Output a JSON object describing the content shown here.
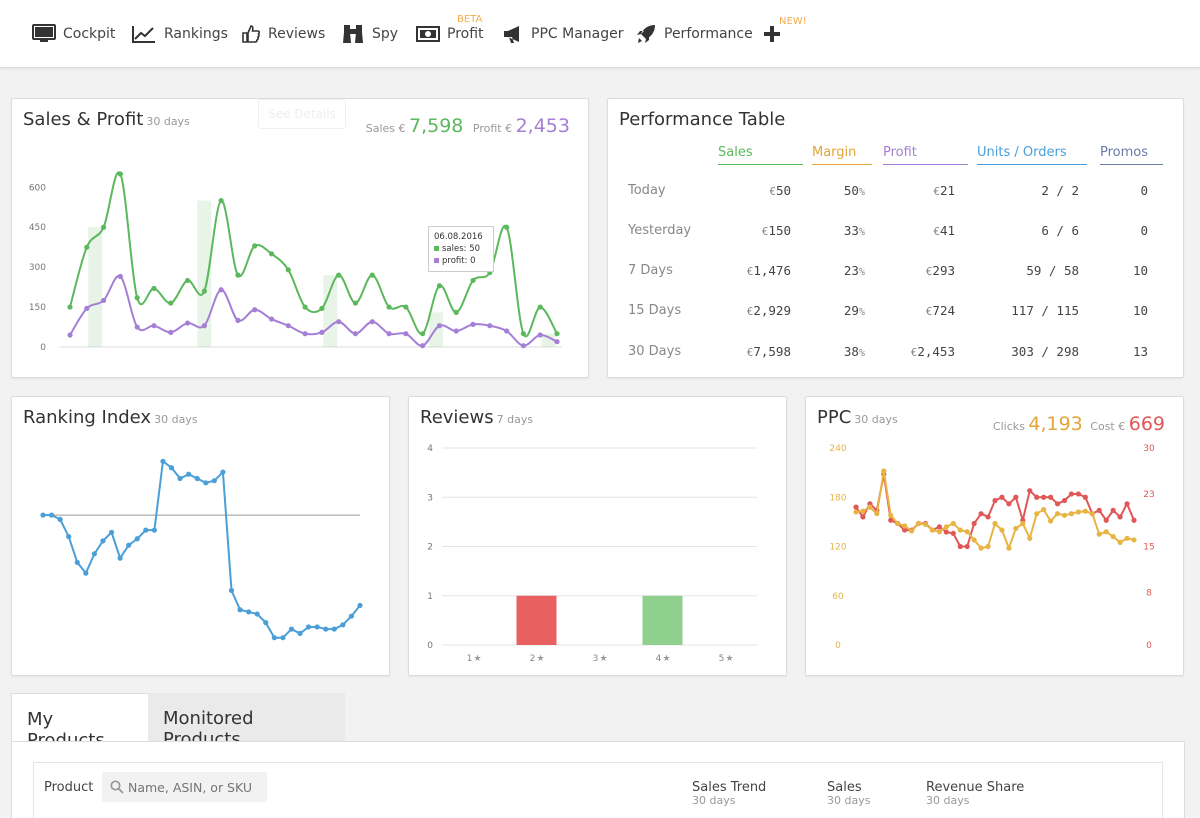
{
  "nav": {
    "items": [
      {
        "label": "Cockpit",
        "icon": "monitor-icon"
      },
      {
        "label": "Rankings",
        "icon": "trend-chart-icon"
      },
      {
        "label": "Reviews",
        "icon": "thumbs-up-icon"
      },
      {
        "label": "Spy",
        "icon": "binoculars-icon"
      },
      {
        "label": "Profit",
        "icon": "banknote-icon",
        "badge": "BETA"
      },
      {
        "label": "PPC Manager",
        "icon": "megaphone-icon"
      },
      {
        "label": "Performance",
        "icon": "rocket-icon"
      }
    ],
    "plus_badge": "NEW!"
  },
  "sales_profit": {
    "title": "Sales & Profit",
    "period": "30 days",
    "ghost_button": "See Details",
    "sales_label": "Sales €",
    "sales_value": "7,598",
    "profit_label": "Profit €",
    "profit_value": "2,453",
    "tooltip": {
      "date": "06.08.2016",
      "sales_label": "sales:",
      "sales_value": "50",
      "profit_label": "profit:",
      "profit_value": "0"
    },
    "colors": {
      "sales": "#5cb85c",
      "profit": "#a57fd6"
    }
  },
  "performance_table": {
    "title": "Performance Table",
    "columns": [
      "Sales",
      "Margin",
      "Profit",
      "Units / Orders",
      "Promos"
    ],
    "column_colors": [
      "#5cb85c",
      "#e2a53a",
      "#a57fd6",
      "#4a9fd8",
      "#6b7ba8"
    ],
    "rows": [
      {
        "label": "Today",
        "sales": "50",
        "margin": "50",
        "profit": "21",
        "units": "2 / 2",
        "promos": "0"
      },
      {
        "label": "Yesterday",
        "sales": "150",
        "margin": "33",
        "profit": "41",
        "units": "6 / 6",
        "promos": "0"
      },
      {
        "label": "7 Days",
        "sales": "1,476",
        "margin": "23",
        "profit": "293",
        "units": "59 / 58",
        "promos": "10"
      },
      {
        "label": "15 Days",
        "sales": "2,929",
        "margin": "29",
        "profit": "724",
        "units": "117 / 115",
        "promos": "10"
      },
      {
        "label": "30 Days",
        "sales": "7,598",
        "margin": "38",
        "profit": "2,453",
        "units": "303 / 298",
        "promos": "13"
      }
    ],
    "currency": "€",
    "percent": "%"
  },
  "ranking": {
    "title": "Ranking Index",
    "period": "30 days"
  },
  "reviews": {
    "title": "Reviews",
    "period": "7 days"
  },
  "ppc": {
    "title": "PPC",
    "period": "30 days",
    "clicks_label": "Clicks",
    "clicks_value": "4,193",
    "cost_label": "Cost €",
    "cost_value": "669"
  },
  "chart_data": [
    {
      "type": "line",
      "title": "Sales & Profit",
      "ylim": [
        0,
        650
      ],
      "yticks": [
        0,
        150,
        300,
        450,
        600
      ],
      "x": [
        1,
        2,
        3,
        4,
        5,
        6,
        7,
        8,
        9,
        10,
        11,
        12,
        13,
        14,
        15,
        16,
        17,
        18,
        19,
        20,
        21,
        22,
        23,
        24,
        25,
        26,
        27,
        28,
        29,
        30
      ],
      "series": [
        {
          "name": "sales",
          "values": [
            150,
            375,
            450,
            650,
            185,
            220,
            165,
            250,
            210,
            550,
            270,
            380,
            350,
            290,
            150,
            145,
            270,
            165,
            270,
            150,
            150,
            50,
            230,
            130,
            250,
            280,
            450,
            50,
            150,
            50
          ]
        },
        {
          "name": "profit",
          "values": [
            45,
            145,
            175,
            265,
            75,
            80,
            55,
            90,
            80,
            215,
            100,
            140,
            105,
            80,
            50,
            55,
            95,
            50,
            95,
            50,
            50,
            5,
            80,
            60,
            85,
            80,
            60,
            5,
            45,
            20
          ]
        }
      ],
      "bars": [
        {
          "x": 2.5,
          "value": 450
        },
        {
          "x": 9,
          "value": 550
        },
        {
          "x": 16.5,
          "value": 270
        },
        {
          "x": 22.8,
          "value": 130
        },
        {
          "x": 29.5,
          "value": 50
        }
      ],
      "grid": false
    },
    {
      "type": "line",
      "title": "Ranking Index",
      "series": [
        {
          "name": "index",
          "values": [
            0.27,
            0.27,
            0.25,
            0.17,
            0.05,
            0.0,
            0.09,
            0.15,
            0.19,
            0.07,
            0.13,
            0.16,
            0.2,
            0.2,
            0.52,
            0.49,
            0.44,
            0.46,
            0.44,
            0.42,
            0.43,
            0.47,
            -0.08,
            -0.17,
            -0.18,
            -0.19,
            -0.23,
            -0.3,
            -0.3,
            -0.26,
            -0.28,
            -0.25,
            -0.25,
            -0.26,
            -0.26,
            -0.24,
            -0.2,
            -0.15
          ]
        }
      ],
      "baseline": 0.27
    },
    {
      "type": "bar",
      "title": "Reviews",
      "categories": [
        "1",
        "2",
        "3",
        "4",
        "5"
      ],
      "values": [
        0,
        1,
        0,
        1,
        0
      ],
      "colors": [
        "#e86060",
        "#e86060",
        "#e86060",
        "#8fd08f",
        "#8fd08f"
      ],
      "ylim": [
        0,
        4
      ],
      "yticks": [
        0,
        1,
        2,
        3,
        4
      ],
      "grid": true
    },
    {
      "type": "line",
      "title": "PPC",
      "ylim_left": [
        0,
        240
      ],
      "yticks_left": [
        0,
        60,
        120,
        180,
        240
      ],
      "ylim_right": [
        0,
        30
      ],
      "yticks_right": [
        0,
        8,
        15,
        23,
        30
      ],
      "series": [
        {
          "name": "clicks",
          "axis": "right",
          "values": [
            21,
            19.5,
            21.5,
            20.5,
            26,
            19,
            18.5,
            17.5,
            17.5,
            18.5,
            18.5,
            17.5,
            18,
            17.2,
            17,
            15,
            15,
            18.5,
            20,
            19.5,
            22,
            22.5,
            21.5,
            22.5,
            19,
            23.5,
            22.5,
            22.5,
            22.5,
            21.5,
            22,
            23,
            23,
            22.5,
            20,
            20.5,
            19,
            20.5,
            19.5,
            21.5,
            19
          ]
        },
        {
          "name": "cost",
          "axis": "left",
          "values": [
            162,
            163,
            168,
            160,
            212,
            158,
            148,
            145,
            139,
            148,
            147,
            140,
            138,
            144,
            148,
            140,
            138,
            128,
            118,
            120,
            148,
            140,
            118,
            142,
            148,
            130,
            160,
            165,
            151,
            160,
            158,
            160,
            162,
            163,
            160,
            135,
            138,
            132,
            125,
            130,
            128
          ]
        }
      ],
      "colors": {
        "clicks": "#e05757",
        "cost": "#e8b444"
      }
    }
  ],
  "tabs": {
    "active": "My Products",
    "inactive": "Monitored Products"
  },
  "products": {
    "product_label": "Product",
    "search_placeholder": "Name, ASIN, or SKU",
    "col_sales_trend": "Sales Trend",
    "col_sales": "Sales",
    "col_revenue": "Revenue Share",
    "period": "30 days"
  }
}
